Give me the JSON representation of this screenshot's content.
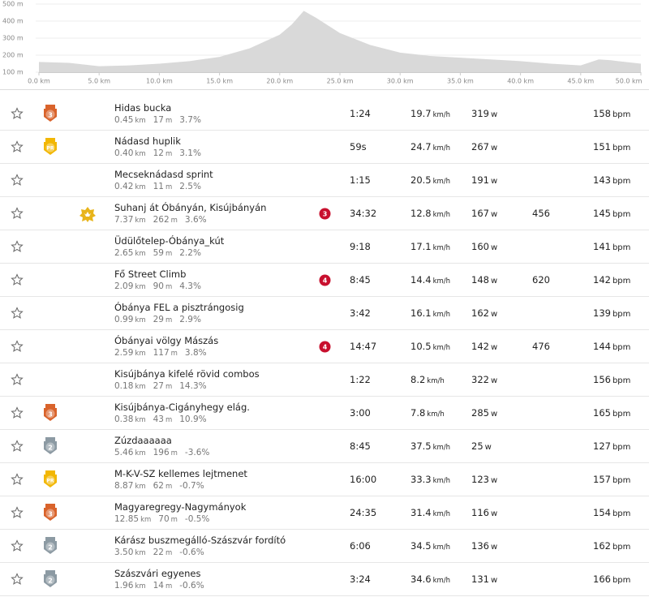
{
  "chart_data": {
    "type": "area",
    "x": [
      0,
      2.5,
      5,
      7.5,
      10,
      12.5,
      15,
      17.5,
      20,
      21,
      22,
      23,
      25,
      27.5,
      30,
      32.5,
      35,
      37.5,
      40,
      42.5,
      45,
      46.5,
      47.5,
      50
    ],
    "series": [
      {
        "color": "#d9d9d9",
        "values": [
          160,
          155,
          135,
          140,
          150,
          165,
          190,
          240,
          320,
          380,
          460,
          420,
          330,
          260,
          215,
          195,
          185,
          175,
          165,
          150,
          140,
          175,
          170,
          150
        ]
      }
    ],
    "xlim": [
      0,
      50
    ],
    "ylim": [
      100,
      500
    ],
    "xticks": [
      {
        "value": 0,
        "label": "0.0 km"
      },
      {
        "value": 5,
        "label": "5.0 km"
      },
      {
        "value": 10,
        "label": "10.0 km"
      },
      {
        "value": 15,
        "label": "15.0 km"
      },
      {
        "value": 20,
        "label": "20.0 km"
      },
      {
        "value": 25,
        "label": "25.0 km"
      },
      {
        "value": 30,
        "label": "30.0 km"
      },
      {
        "value": 35,
        "label": "35.0 km"
      },
      {
        "value": 40,
        "label": "40.0 km"
      },
      {
        "value": 45,
        "label": "45.0 km"
      },
      {
        "value": 50,
        "label": "50.0 km"
      }
    ],
    "yticks": [
      {
        "value": 500,
        "label": "500 m"
      },
      {
        "value": 400,
        "label": "400 m"
      },
      {
        "value": 300,
        "label": "300 m"
      },
      {
        "value": 200,
        "label": "200 m"
      },
      {
        "value": 100,
        "label": "100 m"
      }
    ],
    "grid": true
  },
  "segments": [
    {
      "badge": {
        "label": "3",
        "color": "#d9632b"
      },
      "name": "Hidas bucka",
      "distance": [
        "0.45",
        "km"
      ],
      "elevation": [
        "17",
        "m"
      ],
      "grade": "3.7%",
      "time": "1:24",
      "speed": [
        "19.7",
        "km/h"
      ],
      "power": [
        "319",
        "w"
      ],
      "hr": [
        "158",
        "bpm"
      ]
    },
    {
      "badge": {
        "label": "PR",
        "color": "#f2b705"
      },
      "name": "Nádasd huplik",
      "distance": [
        "0.40",
        "km"
      ],
      "elevation": [
        "12",
        "m"
      ],
      "grade": "3.1%",
      "time": "59s",
      "speed": [
        "24.7",
        "km/h"
      ],
      "power": [
        "267",
        "w"
      ],
      "hr": [
        "151",
        "bpm"
      ]
    },
    {
      "name": "Mecseknádasd sprint",
      "distance": [
        "0.42",
        "km"
      ],
      "elevation": [
        "11",
        "m"
      ],
      "grade": "2.5%",
      "time": "1:15",
      "speed": [
        "20.5",
        "km/h"
      ],
      "power": [
        "191",
        "w"
      ],
      "hr": [
        "143",
        "bpm"
      ]
    },
    {
      "crown": true,
      "name": "Suhanj át Óbányán, Kisújbányán",
      "distance": [
        "7.37",
        "km"
      ],
      "elevation": [
        "262",
        "m"
      ],
      "grade": "3.6%",
      "rank": "3",
      "time": "34:32",
      "speed": [
        "12.8",
        "km/h"
      ],
      "power": [
        "167",
        "w"
      ],
      "extra": "456",
      "hr": [
        "145",
        "bpm"
      ]
    },
    {
      "name": "Üdülőtelep-Óbánya_kút",
      "distance": [
        "2.65",
        "km"
      ],
      "elevation": [
        "59",
        "m"
      ],
      "grade": "2.2%",
      "time": "9:18",
      "speed": [
        "17.1",
        "km/h"
      ],
      "power": [
        "160",
        "w"
      ],
      "hr": [
        "141",
        "bpm"
      ]
    },
    {
      "name": "Fő Street Climb",
      "distance": [
        "2.09",
        "km"
      ],
      "elevation": [
        "90",
        "m"
      ],
      "grade": "4.3%",
      "rank": "4",
      "time": "8:45",
      "speed": [
        "14.4",
        "km/h"
      ],
      "power": [
        "148",
        "w"
      ],
      "extra": "620",
      "hr": [
        "142",
        "bpm"
      ]
    },
    {
      "name": "Óbánya FEL a pisztrángosig",
      "distance": [
        "0.99",
        "km"
      ],
      "elevation": [
        "29",
        "m"
      ],
      "grade": "2.9%",
      "time": "3:42",
      "speed": [
        "16.1",
        "km/h"
      ],
      "power": [
        "162",
        "w"
      ],
      "hr": [
        "139",
        "bpm"
      ]
    },
    {
      "name": "Óbányai völgy Mászás",
      "distance": [
        "2.59",
        "km"
      ],
      "elevation": [
        "117",
        "m"
      ],
      "grade": "3.8%",
      "rank": "4",
      "time": "14:47",
      "speed": [
        "10.5",
        "km/h"
      ],
      "power": [
        "142",
        "w"
      ],
      "extra": "476",
      "hr": [
        "144",
        "bpm"
      ]
    },
    {
      "name": "Kisújbánya kifelé rövid combos",
      "distance": [
        "0.18",
        "km"
      ],
      "elevation": [
        "27",
        "m"
      ],
      "grade": "14.3%",
      "time": "1:22",
      "speed": [
        "8.2",
        "km/h"
      ],
      "power": [
        "322",
        "w"
      ],
      "hr": [
        "156",
        "bpm"
      ]
    },
    {
      "badge": {
        "label": "3",
        "color": "#d9632b"
      },
      "name": "Kisújbánya-Cigányhegy elág.",
      "distance": [
        "0.38",
        "km"
      ],
      "elevation": [
        "43",
        "m"
      ],
      "grade": "10.9%",
      "time": "3:00",
      "speed": [
        "7.8",
        "km/h"
      ],
      "power": [
        "285",
        "w"
      ],
      "hr": [
        "165",
        "bpm"
      ]
    },
    {
      "badge": {
        "label": "2",
        "color": "#8c9aa3"
      },
      "name": "Zúzdaaaaaa",
      "distance": [
        "5.46",
        "km"
      ],
      "elevation": [
        "196",
        "m"
      ],
      "grade": "-3.6%",
      "time": "8:45",
      "speed": [
        "37.5",
        "km/h"
      ],
      "power": [
        "25",
        "w"
      ],
      "hr": [
        "127",
        "bpm"
      ]
    },
    {
      "badge": {
        "label": "PR",
        "color": "#f2b705"
      },
      "name": "M-K-V-SZ kellemes lejtmenet",
      "distance": [
        "8.87",
        "km"
      ],
      "elevation": [
        "62",
        "m"
      ],
      "grade": "-0.7%",
      "time": "16:00",
      "speed": [
        "33.3",
        "km/h"
      ],
      "power": [
        "123",
        "w"
      ],
      "hr": [
        "157",
        "bpm"
      ]
    },
    {
      "badge": {
        "label": "3",
        "color": "#d9632b"
      },
      "name": "Magyaregregy-Nagymányok",
      "distance": [
        "12.85",
        "km"
      ],
      "elevation": [
        "70",
        "m"
      ],
      "grade": "-0.5%",
      "time": "24:35",
      "speed": [
        "31.4",
        "km/h"
      ],
      "power": [
        "116",
        "w"
      ],
      "hr": [
        "154",
        "bpm"
      ]
    },
    {
      "badge": {
        "label": "2",
        "color": "#8c9aa3"
      },
      "name": "Kárász buszmegálló-Szászvár fordító",
      "distance": [
        "3.50",
        "km"
      ],
      "elevation": [
        "22",
        "m"
      ],
      "grade": "-0.6%",
      "time": "6:06",
      "speed": [
        "34.5",
        "km/h"
      ],
      "power": [
        "136",
        "w"
      ],
      "hr": [
        "162",
        "bpm"
      ]
    },
    {
      "badge": {
        "label": "2",
        "color": "#8c9aa3"
      },
      "name": "Szászvári egyenes",
      "distance": [
        "1.96",
        "km"
      ],
      "elevation": [
        "14",
        "m"
      ],
      "grade": "-0.6%",
      "time": "3:24",
      "speed": [
        "34.6",
        "km/h"
      ],
      "power": [
        "131",
        "w"
      ],
      "hr": [
        "166",
        "bpm"
      ]
    }
  ]
}
